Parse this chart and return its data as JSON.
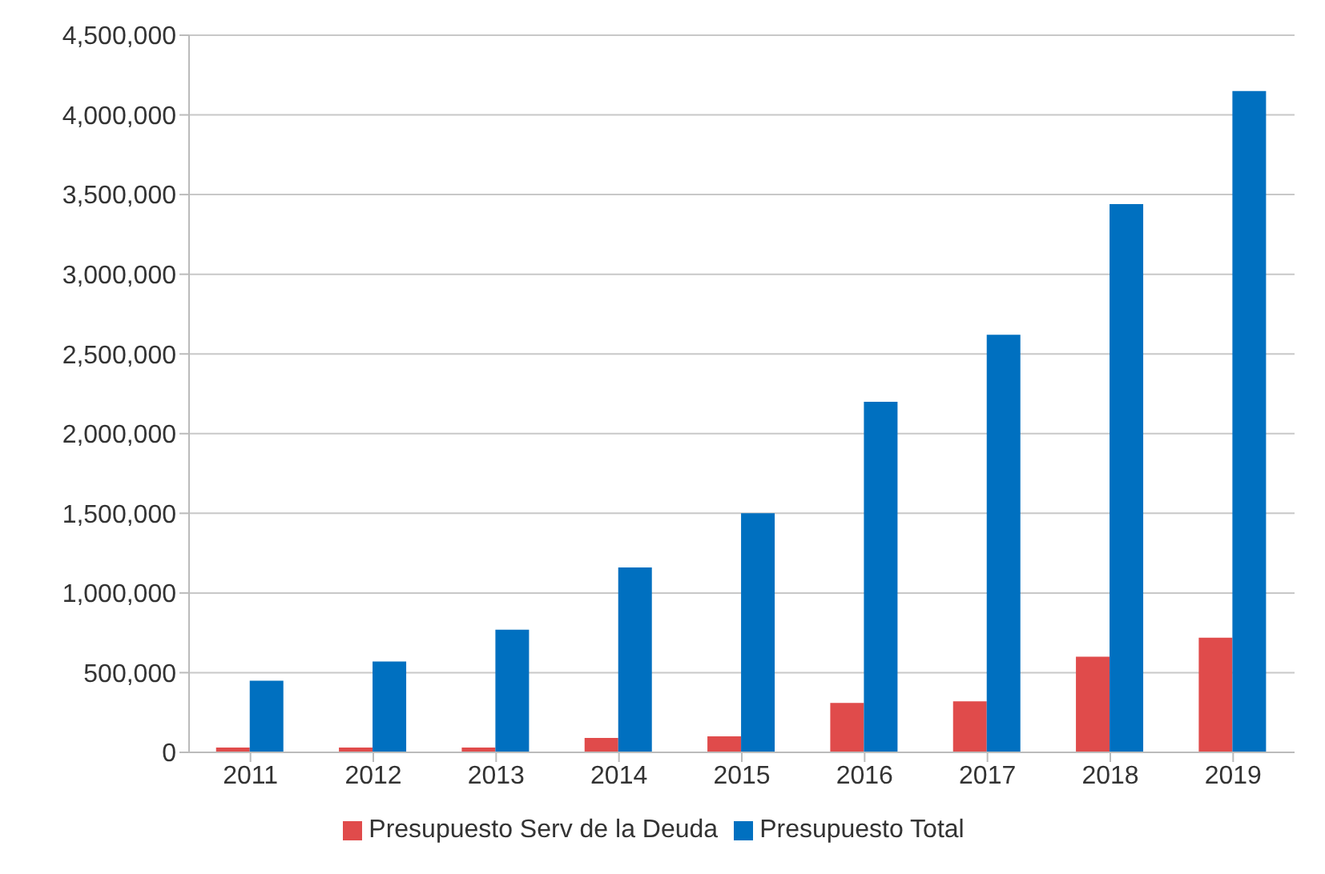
{
  "chart_data": {
    "type": "bar",
    "categories": [
      "2011",
      "2012",
      "2013",
      "2014",
      "2015",
      "2016",
      "2017",
      "2018",
      "2019"
    ],
    "series": [
      {
        "name": "Presupuesto Serv de la Deuda",
        "color": "#e04b4b",
        "values": [
          30000,
          30000,
          30000,
          90000,
          100000,
          310000,
          320000,
          600000,
          720000
        ]
      },
      {
        "name": "Presupuesto Total",
        "color": "#0070c0",
        "values": [
          450000,
          570000,
          770000,
          1160000,
          1500000,
          2200000,
          2620000,
          3440000,
          4150000
        ]
      }
    ],
    "ylim": [
      0,
      4500000
    ],
    "yticks": [
      0,
      {
        "value": 500000,
        "label": "500,000"
      },
      {
        "value": 1000000,
        "label": "1,000,000"
      },
      {
        "value": 1500000,
        "label": "1,500,000"
      },
      {
        "value": 2000000,
        "label": "2,000,000"
      },
      {
        "value": 2500000,
        "label": "2,500,000"
      },
      {
        "value": 3000000,
        "label": "3,000,000"
      },
      {
        "value": 3500000,
        "label": "3,500,000"
      },
      {
        "value": 4000000,
        "label": "4,000,000"
      },
      {
        "value": 4500000,
        "label": "4,500,000"
      }
    ],
    "grid": "y",
    "legend": "bottom"
  }
}
